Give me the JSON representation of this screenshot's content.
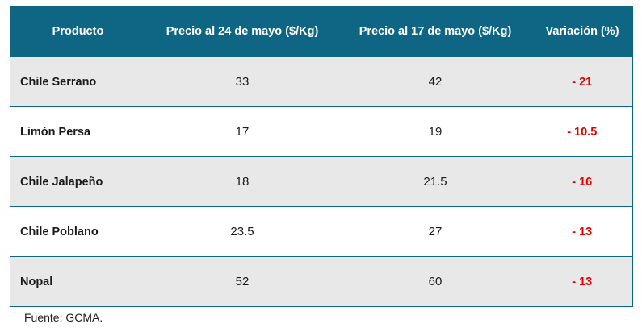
{
  "table": {
    "headers": [
      "Producto",
      "Precio al 24 de mayo ($/Kg)",
      "Precio al 17 de mayo ($/Kg)",
      "Variación (%)"
    ],
    "rows": [
      {
        "product": "Chile Serrano",
        "price_may24": "33",
        "price_may17": "42",
        "variation": "- 21"
      },
      {
        "product": "Limón Persa",
        "price_may24": "17",
        "price_may17": "19",
        "variation": "- 10.5"
      },
      {
        "product": "Chile Jalapeño",
        "price_may24": "18",
        "price_may17": "21.5",
        "variation": "- 16"
      },
      {
        "product": "Chile Poblano",
        "price_may24": "23.5",
        "price_may17": "27",
        "variation": "- 13"
      },
      {
        "product": "Nopal",
        "price_may24": "52",
        "price_may17": "60",
        "variation": "- 13"
      }
    ]
  },
  "source": "Fuente: GCMA.",
  "colors": {
    "header_bg": "#0e6684",
    "header_text": "#ffffff",
    "stripe_bg": "#e8e8e8",
    "variation_text": "#e00000"
  }
}
